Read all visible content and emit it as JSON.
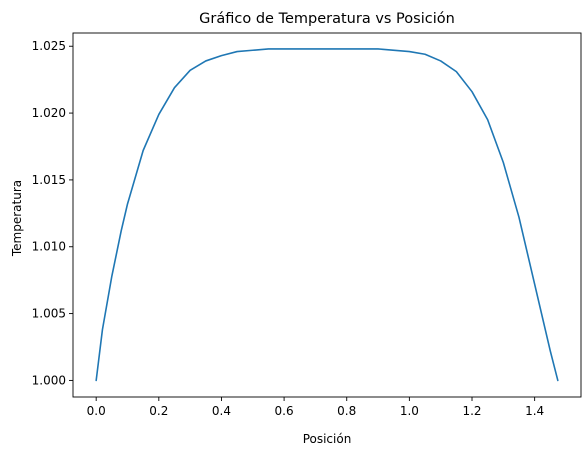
{
  "chart_data": {
    "type": "line",
    "title": "Gráfico de Temperatura vs Posición",
    "xlabel": "Posición",
    "ylabel": "Temperatura",
    "xlim": [
      -0.074,
      1.548
    ],
    "ylim": [
      0.99876,
      1.02599
    ],
    "xticks": [
      0.0,
      0.2,
      0.4,
      0.6,
      0.8,
      1.0,
      1.2,
      1.4
    ],
    "xtick_labels": [
      "0.0",
      "0.2",
      "0.4",
      "0.6",
      "0.8",
      "1.0",
      "1.2",
      "1.4"
    ],
    "yticks": [
      1.0,
      1.005,
      1.01,
      1.015,
      1.02,
      1.025
    ],
    "ytick_labels": [
      "1.000",
      "1.005",
      "1.010",
      "1.015",
      "1.020",
      "1.025"
    ],
    "grid": false,
    "series": [
      {
        "color": "#1f77b4",
        "x": [
          0.0,
          0.02,
          0.05,
          0.08,
          0.1,
          0.15,
          0.2,
          0.25,
          0.3,
          0.35,
          0.4,
          0.45,
          0.5,
          0.55,
          0.6,
          0.7,
          0.8,
          0.9,
          1.0,
          1.05,
          1.1,
          1.15,
          1.2,
          1.25,
          1.3,
          1.35,
          1.4,
          1.43,
          1.45,
          1.474
        ],
        "y": [
          1.0,
          1.0038,
          1.0078,
          1.0112,
          1.0132,
          1.0172,
          1.0199,
          1.0219,
          1.0232,
          1.0239,
          1.0243,
          1.0246,
          1.0247,
          1.0248,
          1.0248,
          1.0248,
          1.0248,
          1.0248,
          1.0246,
          1.0244,
          1.0239,
          1.0231,
          1.0216,
          1.0195,
          1.0163,
          1.0122,
          1.0072,
          1.0042,
          1.0022,
          1.0
        ]
      }
    ]
  }
}
